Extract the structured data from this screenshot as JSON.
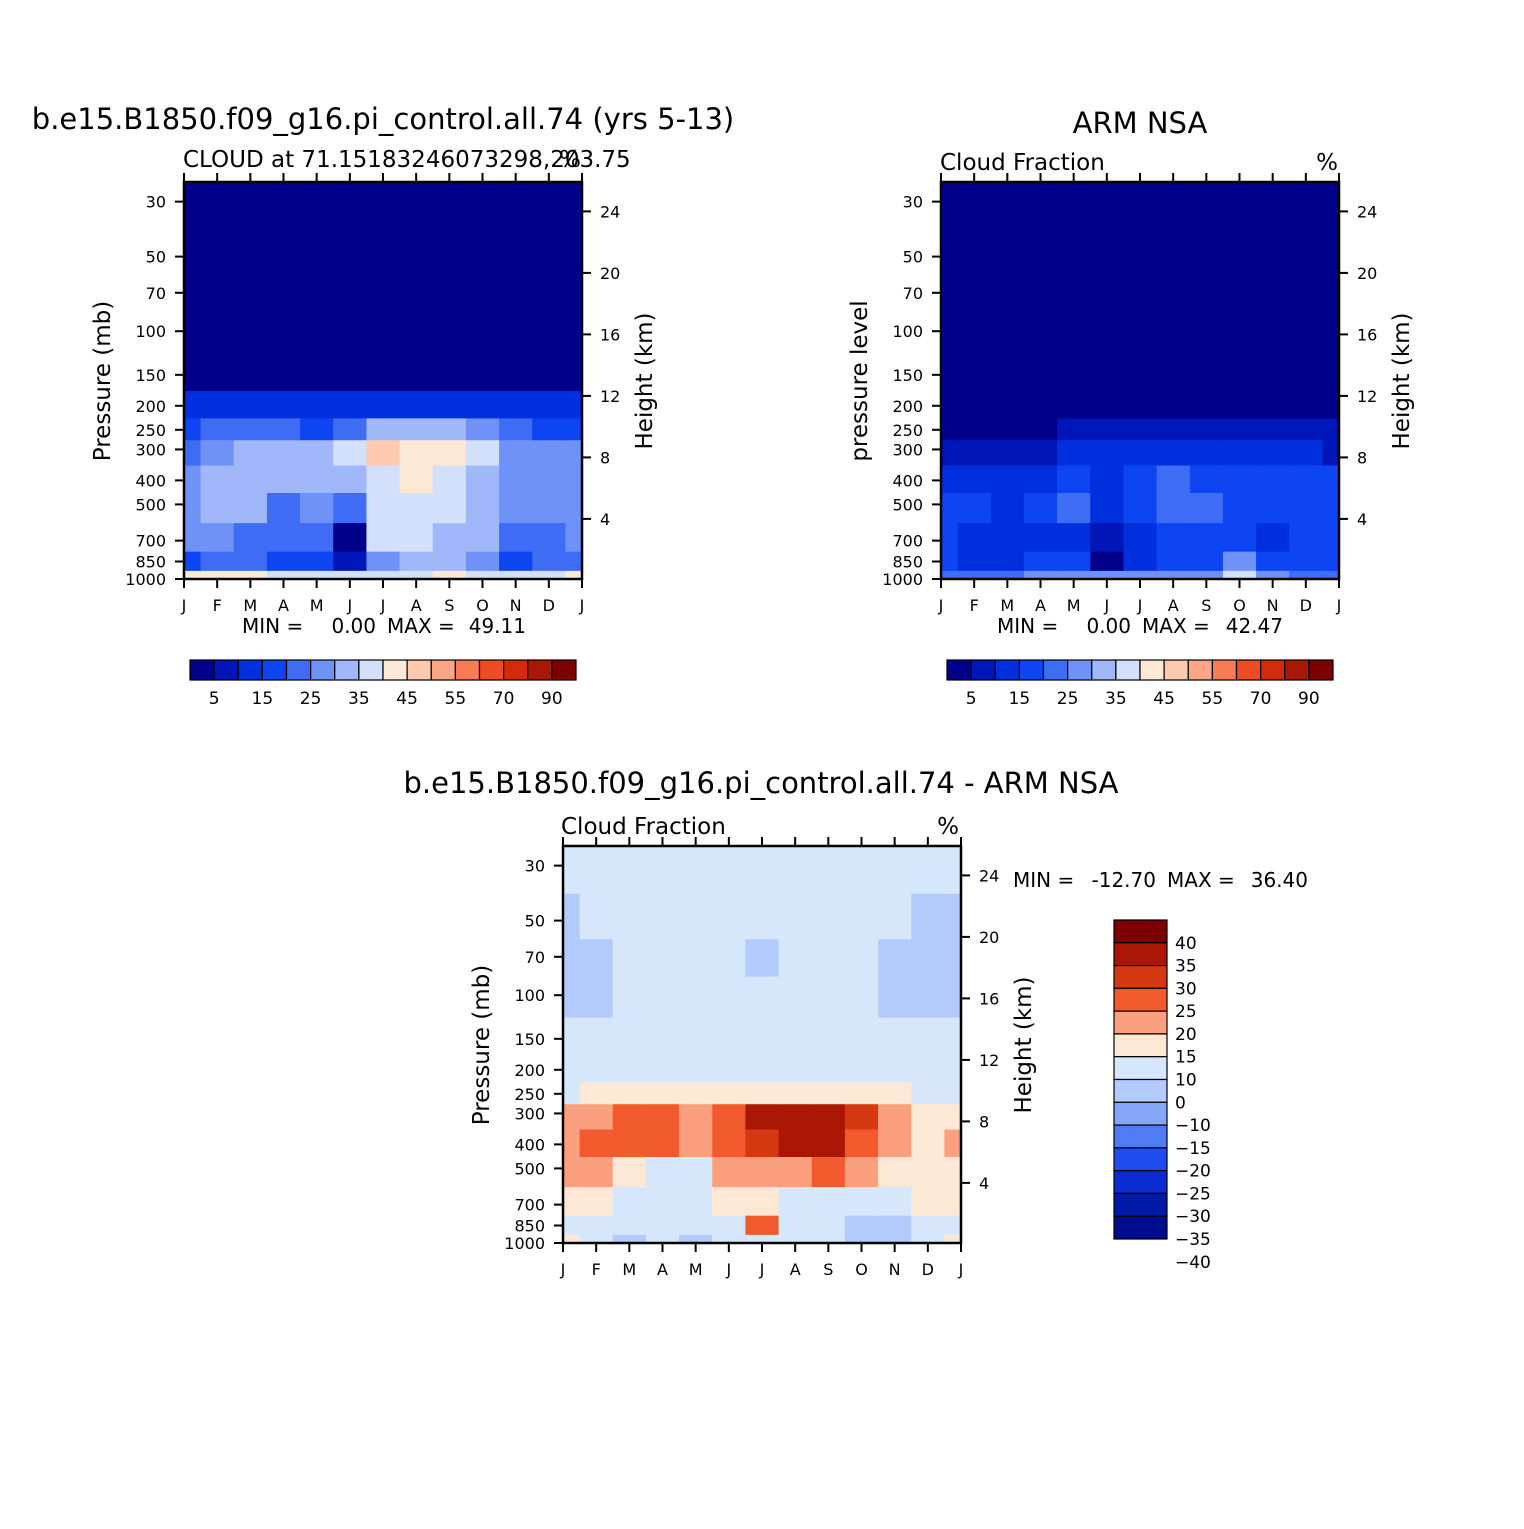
{
  "colors": {
    "seq": [
      "#00008b",
      "#0016b8",
      "#0030dd",
      "#0d45f2",
      "#3e6cf5",
      "#6e92f7",
      "#a0b8fa",
      "#d2e0fc",
      "#fde8d6",
      "#fdcab0",
      "#fca688",
      "#f97b55",
      "#ee4c25",
      "#d22a0b",
      "#ab1705",
      "#7d0000"
    ],
    "diff": [
      "#7d0000",
      "#ab1705",
      "#d43911",
      "#f15a2c",
      "#fba07e",
      "#fde8d6",
      "#d6e7fc",
      "#b3cbfb",
      "#85a5f8",
      "#4f7bf5",
      "#1f4cf0",
      "#0a2bd0",
      "#001aa8",
      "#000c8e"
    ]
  },
  "chart_data": [
    {
      "id": "model",
      "type": "heatmap",
      "title": "b.e15.B1850.f09_g16.pi_control.all.74 (yrs 5-13)",
      "subtitle_left": "CLOUD at 71.15183246073298,203.75",
      "subtitle_right": "%",
      "ylabel": "Pressure (mb)",
      "ylabel_right": "Height (km)",
      "x_ticks": [
        "J",
        "F",
        "M",
        "A",
        "M",
        "J",
        "J",
        "A",
        "S",
        "O",
        "N",
        "D",
        "J"
      ],
      "y_ticks": [
        "30",
        "50",
        "70",
        "100",
        "150",
        "200",
        "250",
        "300",
        "400",
        "500",
        "700",
        "850",
        "1000"
      ],
      "y_ticks_right": [
        "24",
        "20",
        "16",
        "12",
        "8",
        "4"
      ],
      "stats": {
        "min_label": "MIN =",
        "min": "0.00",
        "max_label": "MAX =",
        "max": "49.11"
      },
      "colorbar_labels": [
        "5",
        "15",
        "25",
        "35",
        "45",
        "55",
        "70",
        "90"
      ],
      "levels": [
        "1000",
        "850",
        "700",
        "500",
        "400",
        "300",
        "250",
        "200",
        "150",
        "100",
        "70",
        "50",
        "30"
      ],
      "grid": [
        [
          42,
          44,
          40,
          38,
          36,
          37,
          38,
          37,
          40,
          39,
          38,
          38,
          42
        ],
        [
          18,
          22,
          20,
          19,
          16,
          6,
          28,
          30,
          31,
          29,
          18,
          20,
          20
        ],
        [
          26,
          27,
          22,
          20,
          20,
          4,
          35,
          37,
          34,
          33,
          24,
          24,
          25
        ],
        [
          29,
          33,
          30,
          24,
          25,
          22,
          36,
          39,
          36,
          30,
          26,
          27,
          28
        ],
        [
          27,
          33,
          33,
          30,
          30,
          33,
          39,
          40,
          38,
          33,
          28,
          27,
          27
        ],
        [
          22,
          29,
          31,
          32,
          31,
          35,
          45,
          44,
          44,
          35,
          28,
          26,
          25
        ],
        [
          16,
          20,
          20,
          20,
          19,
          23,
          30,
          33,
          32,
          28,
          21,
          19,
          18
        ],
        [
          10,
          11,
          11,
          11,
          10,
          13,
          13,
          14,
          13,
          13,
          12,
          11,
          10
        ],
        [
          3,
          3,
          3,
          3,
          3,
          3,
          3,
          4,
          3,
          3,
          3,
          3,
          3
        ],
        [
          1,
          1,
          1,
          1,
          1,
          1,
          1,
          1,
          1,
          1,
          1,
          1,
          1
        ],
        [
          1,
          1,
          1,
          1,
          1,
          1,
          1,
          1,
          1,
          1,
          1,
          1,
          1
        ],
        [
          1,
          1,
          1,
          1,
          1,
          1,
          1,
          1,
          1,
          1,
          1,
          1,
          1
        ],
        [
          1,
          1,
          1,
          1,
          1,
          1,
          1,
          1,
          1,
          1,
          1,
          1,
          1
        ]
      ]
    },
    {
      "id": "obs",
      "type": "heatmap",
      "title": "ARM NSA",
      "subtitle_left": "Cloud Fraction",
      "subtitle_right": "%",
      "ylabel": "pressure level",
      "ylabel_right": "Height (km)",
      "x_ticks": [
        "J",
        "F",
        "M",
        "A",
        "M",
        "J",
        "J",
        "A",
        "S",
        "O",
        "N",
        "D",
        "J"
      ],
      "y_ticks": [
        "30",
        "50",
        "70",
        "100",
        "150",
        "200",
        "250",
        "300",
        "400",
        "500",
        "700",
        "850",
        "1000"
      ],
      "y_ticks_right": [
        "24",
        "20",
        "16",
        "12",
        "8",
        "4"
      ],
      "stats": {
        "min_label": "MIN =",
        "min": "0.00",
        "max_label": "MAX =",
        "max": "42.47"
      },
      "colorbar_labels": [
        "5",
        "15",
        "25",
        "35",
        "45",
        "55",
        "70",
        "90"
      ],
      "levels": [
        "1000",
        "850",
        "700",
        "500",
        "400",
        "300",
        "250",
        "200",
        "150",
        "100",
        "70",
        "50",
        "30"
      ],
      "grid": [
        [
          21,
          24,
          23,
          25,
          27,
          25,
          28,
          25,
          27,
          35,
          27,
          24,
          22
        ],
        [
          16,
          14,
          14,
          15,
          16,
          3,
          14,
          16,
          17,
          26,
          16,
          17,
          16
        ],
        [
          16,
          14,
          12,
          14,
          14,
          5,
          14,
          17,
          16,
          17,
          14,
          15,
          16
        ],
        [
          16,
          16,
          14,
          18,
          20,
          12,
          16,
          20,
          20,
          18,
          16,
          17,
          16
        ],
        [
          14,
          13,
          13,
          13,
          15,
          12,
          16,
          20,
          17,
          17,
          15,
          17,
          15
        ],
        [
          9,
          9,
          8,
          9,
          10,
          10,
          11,
          12,
          10,
          10,
          10,
          10,
          9
        ],
        [
          3,
          3,
          3,
          4,
          5,
          6,
          8,
          8,
          6,
          5,
          5,
          5,
          5
        ],
        [
          2,
          2,
          2,
          2,
          3,
          4,
          4,
          4,
          3,
          2,
          2,
          2,
          2
        ],
        [
          1,
          1,
          1,
          1,
          1,
          1,
          1,
          1,
          1,
          1,
          1,
          1,
          1
        ],
        [
          1,
          1,
          1,
          1,
          1,
          1,
          1,
          1,
          1,
          1,
          1,
          1,
          1
        ],
        [
          1,
          1,
          1,
          1,
          1,
          1,
          1,
          1,
          1,
          1,
          1,
          1,
          1
        ],
        [
          1,
          1,
          1,
          1,
          1,
          1,
          1,
          1,
          1,
          1,
          1,
          1,
          1
        ],
        [
          1,
          1,
          1,
          1,
          1,
          1,
          1,
          1,
          1,
          1,
          1,
          1,
          1
        ]
      ]
    },
    {
      "id": "diff",
      "type": "heatmap",
      "title": "b.e15.B1850.f09_g16.pi_control.all.74 - ARM NSA",
      "subtitle_left": "Cloud Fraction",
      "subtitle_right": "%",
      "ylabel": "Pressure (mb)",
      "ylabel_right": "Height (km)",
      "x_ticks": [
        "J",
        "F",
        "M",
        "A",
        "M",
        "J",
        "J",
        "A",
        "S",
        "O",
        "N",
        "D",
        "J"
      ],
      "y_ticks": [
        "30",
        "50",
        "70",
        "100",
        "150",
        "200",
        "250",
        "300",
        "400",
        "500",
        "700",
        "850",
        "1000"
      ],
      "y_ticks_right": [
        "24",
        "20",
        "16",
        "12",
        "8",
        "4"
      ],
      "stats": {
        "min_label": "MIN =",
        "min": "-12.70",
        "max_label": "MAX =",
        "max": "36.40"
      },
      "colorbar_labels": [
        "40",
        "35",
        "30",
        "25",
        "20",
        "15",
        "10",
        "0",
        "-10",
        "-15",
        "-20",
        "-25",
        "-30",
        "-35",
        "-40"
      ],
      "levels": [
        "1000",
        "850",
        "700",
        "500",
        "400",
        "300",
        "250",
        "200",
        "150",
        "100",
        "70",
        "50",
        "30"
      ],
      "grid": [
        [
          12,
          6,
          -2,
          3,
          -8,
          3,
          5,
          8,
          9,
          -2,
          -3,
          5,
          12
        ],
        [
          8,
          6,
          5,
          6,
          6,
          3,
          24,
          8,
          6,
          -5,
          -6,
          7,
          8
        ],
        [
          13,
          12,
          9,
          7,
          8,
          11,
          14,
          9,
          7,
          8,
          9,
          10,
          11
        ],
        [
          15,
          15,
          14,
          9,
          9,
          15,
          17,
          19,
          24,
          15,
          11,
          10,
          12
        ],
        [
          17,
          21,
          24,
          21,
          19,
          24,
          29,
          31,
          33,
          24,
          17,
          14,
          16
        ],
        [
          16,
          19,
          20,
          20,
          19,
          24,
          32,
          33,
          34,
          25,
          17,
          14,
          13
        ],
        [
          9,
          10,
          10,
          10,
          10,
          12,
          13,
          14,
          14,
          14,
          11,
          9,
          8
        ],
        [
          4,
          4,
          4,
          4,
          4,
          4,
          4,
          4,
          4,
          4,
          4,
          4,
          4
        ],
        [
          3,
          3,
          3,
          3,
          3,
          3,
          3,
          3,
          3,
          3,
          3,
          3,
          3
        ],
        [
          -3,
          -3,
          2,
          2,
          2,
          2,
          2,
          2,
          2,
          2,
          -3,
          -3,
          -3
        ],
        [
          -3,
          -3,
          2,
          2,
          2,
          2,
          -4,
          2,
          2,
          2,
          -3,
          -3,
          -3
        ],
        [
          -3,
          2,
          2,
          2,
          2,
          2,
          2,
          2,
          2,
          2,
          2,
          -3,
          -3
        ],
        [
          2,
          2,
          2,
          2,
          2,
          2,
          2,
          2,
          2,
          2,
          2,
          2,
          2
        ]
      ]
    }
  ]
}
